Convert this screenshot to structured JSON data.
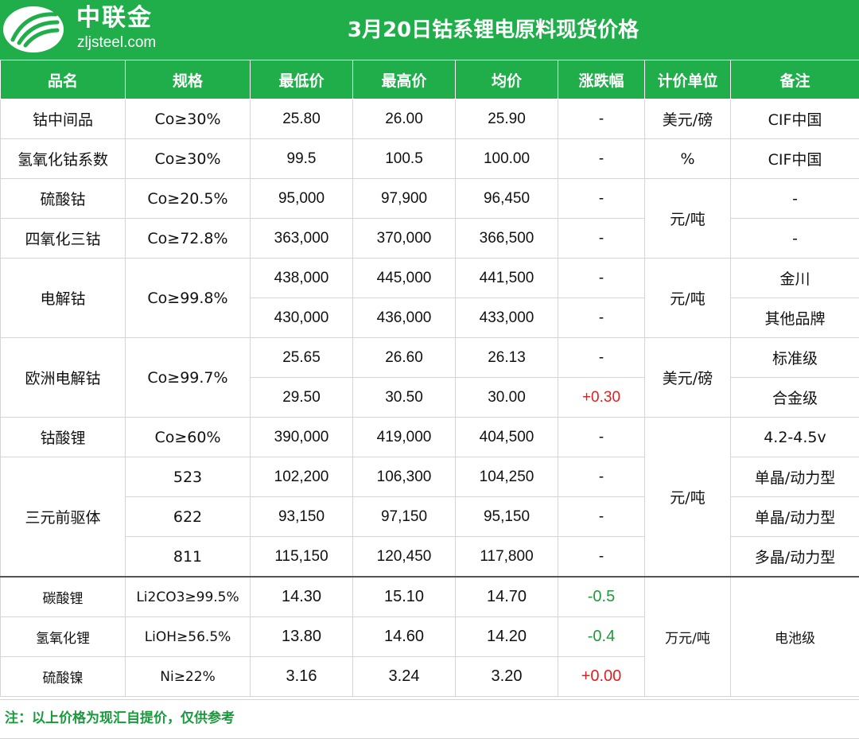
{
  "header": {
    "logo_name": "中联金",
    "logo_url": "zljsteel.com",
    "title": "3月20日钴系锂电原料现货价格"
  },
  "colors": {
    "brand_green": "#1fae4a",
    "up_red": "#e02020",
    "down_green": "#1f9a3c"
  },
  "table": {
    "columns": [
      "品名",
      "规格",
      "最低价",
      "最高价",
      "均价",
      "涨跌幅",
      "计价单位",
      "备注"
    ],
    "rows": [
      {
        "name": "钴中间品",
        "spec": "Co≥30%",
        "low": "25.80",
        "high": "26.00",
        "avg": "25.90",
        "change": "-",
        "unit": "美元/磅",
        "note": "CIF中国"
      },
      {
        "name": "氢氧化钴系数",
        "spec": "Co≥30%",
        "low": "99.5",
        "high": "100.5",
        "avg": "100.00",
        "change": "-",
        "unit": "%",
        "note": "CIF中国"
      },
      {
        "name": "硫酸钴",
        "spec": "Co≥20.5%",
        "low": "95,000",
        "high": "97,900",
        "avg": "96,450",
        "change": "-",
        "unit": "元/吨",
        "note": "-"
      },
      {
        "name": "四氧化三钴",
        "spec": "Co≥72.8%",
        "low": "363,000",
        "high": "370,000",
        "avg": "366,500",
        "change": "-",
        "note": "-"
      },
      {
        "name": "电解钴",
        "spec": "Co≥99.8%",
        "low": "438,000",
        "high": "445,000",
        "avg": "441,500",
        "change": "-",
        "unit": "元/吨",
        "note": "金川"
      },
      {
        "low": "430,000",
        "high": "436,000",
        "avg": "433,000",
        "change": "-",
        "note": "其他品牌"
      },
      {
        "name": "欧洲电解钴",
        "spec": "Co≥99.7%",
        "low": "25.65",
        "high": "26.60",
        "avg": "26.13",
        "change": "-",
        "unit": "美元/磅",
        "note": "标准级"
      },
      {
        "low": "29.50",
        "high": "30.50",
        "avg": "30.00",
        "change": "+0.30",
        "note": "合金级"
      },
      {
        "name": "钴酸锂",
        "spec": "Co≥60%",
        "low": "390,000",
        "high": "419,000",
        "avg": "404,500",
        "change": "-",
        "unit": "元/吨",
        "note": "4.2-4.5v"
      },
      {
        "name": "三元前驱体",
        "spec": "523",
        "low": "102,200",
        "high": "106,300",
        "avg": "104,250",
        "change": "-",
        "note": "单晶/动力型"
      },
      {
        "spec": "622",
        "low": "93,150",
        "high": "97,150",
        "avg": "95,150",
        "change": "-",
        "note": "单晶/动力型"
      },
      {
        "spec": "811",
        "low": "115,150",
        "high": "120,450",
        "avg": "117,800",
        "change": "-",
        "note": "多晶/动力型"
      },
      {
        "name": "碳酸锂",
        "spec": "Li2CO3≥99.5%",
        "low": "14.30",
        "high": "15.10",
        "avg": "14.70",
        "change": "-0.5",
        "unit": "万元/吨",
        "note": "电池级"
      },
      {
        "name": "氢氧化锂",
        "spec": "LiOH≥56.5%",
        "low": "13.80",
        "high": "14.60",
        "avg": "14.20",
        "change": "-0.4"
      },
      {
        "name": "硫酸镍",
        "spec": "Ni≥22%",
        "low": "3.16",
        "high": "3.24",
        "avg": "3.20",
        "change": "+0.00"
      }
    ]
  },
  "footer": {
    "note": "注：以上价格为现汇自提价，仅供参考"
  }
}
